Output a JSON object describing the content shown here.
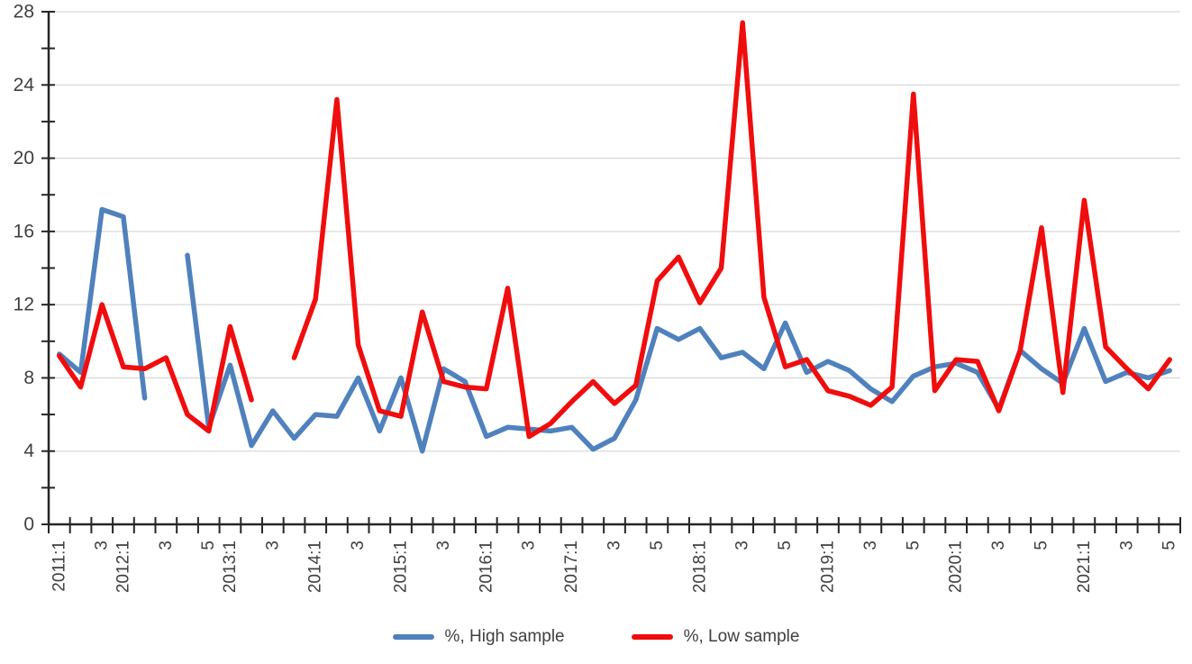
{
  "chart_data": {
    "type": "line",
    "title": "",
    "xlabel": "",
    "ylabel": "",
    "ylim": [
      0,
      28
    ],
    "y_major_step": 4,
    "y_minor_step": 2,
    "y_tick_labels": [
      "0",
      "4",
      "8",
      "12",
      "16",
      "20",
      "24",
      "28"
    ],
    "grid": "horizontal-major",
    "legend_position": "bottom-center",
    "categories": [
      "2011:1",
      "2011:2",
      "2011:3",
      "2012:1",
      "2012:2",
      "2012:3",
      "2012:4",
      "2012:5",
      "2013:1",
      "2013:2",
      "2013:3",
      "2013:4",
      "2014:1",
      "2014:2",
      "2014:3",
      "2014:4",
      "2015:1",
      "2015:2",
      "2015:3",
      "2015:4",
      "2016:1",
      "2016:2",
      "2016:3",
      "2016:4",
      "2017:1",
      "2017:2",
      "2017:3",
      "2017:4",
      "2017:5",
      "2017:6",
      "2018:1",
      "2018:2",
      "2018:3",
      "2018:4",
      "2018:5",
      "2018:6",
      "2019:1",
      "2019:2",
      "2019:3",
      "2019:4",
      "2019:5",
      "2019:6",
      "2020:1",
      "2020:2",
      "2020:3",
      "2020:4",
      "2020:5",
      "2020:6",
      "2021:1",
      "2021:2",
      "2021:3",
      "2021:4",
      "2021:5"
    ],
    "x_tick_labels": [
      "2011:1",
      "",
      "3",
      "2012:1",
      "",
      "3",
      "",
      "5",
      "2013:1",
      "",
      "3",
      "",
      "2014:1",
      "",
      "3",
      "",
      "2015:1",
      "",
      "3",
      "",
      "2016:1",
      "",
      "3",
      "",
      "2017:1",
      "",
      "3",
      "",
      "5",
      "",
      "2018:1",
      "",
      "3",
      "",
      "5",
      "",
      "2019:1",
      "",
      "3",
      "",
      "5",
      "",
      "2020:1",
      "",
      "3",
      "",
      "5",
      "",
      "2021:1",
      "",
      "3",
      "",
      "5"
    ],
    "series": [
      {
        "name": "%, High sample",
        "color": "#4f81bd",
        "values": [
          9.3,
          8.3,
          17.2,
          16.8,
          6.9,
          null,
          14.7,
          5.3,
          8.7,
          4.3,
          6.2,
          4.7,
          6.0,
          5.9,
          8.0,
          5.1,
          8.0,
          4.0,
          8.5,
          7.8,
          4.8,
          5.3,
          5.2,
          5.1,
          5.3,
          4.1,
          4.7,
          6.8,
          10.7,
          10.1,
          10.7,
          9.1,
          9.4,
          8.5,
          11.0,
          8.3,
          8.9,
          8.4,
          7.4,
          6.7,
          8.1,
          8.6,
          8.8,
          8.3,
          6.3,
          9.5,
          8.5,
          7.7,
          10.7,
          7.8,
          8.3,
          8.0,
          8.4
        ]
      },
      {
        "name": "%, Low sample",
        "color": "#f00d0d",
        "values": [
          9.2,
          7.5,
          12.0,
          8.6,
          8.5,
          9.1,
          6.0,
          5.1,
          10.8,
          6.8,
          null,
          9.1,
          12.3,
          23.2,
          9.8,
          6.2,
          5.9,
          11.6,
          7.8,
          7.5,
          7.4,
          12.9,
          4.8,
          5.5,
          6.7,
          7.8,
          6.6,
          7.6,
          13.3,
          14.6,
          12.1,
          14.0,
          27.4,
          12.4,
          8.6,
          9.0,
          7.3,
          7.0,
          6.5,
          7.5,
          23.5,
          7.3,
          9.0,
          8.9,
          6.2,
          9.5,
          16.2,
          7.2,
          17.7,
          9.7,
          8.5,
          7.4,
          9.0
        ]
      }
    ],
    "colors": {
      "grid": "#d9d9d9",
      "axis": "#262626",
      "tick": "#262626",
      "label_text": "#3f3f3f"
    }
  }
}
